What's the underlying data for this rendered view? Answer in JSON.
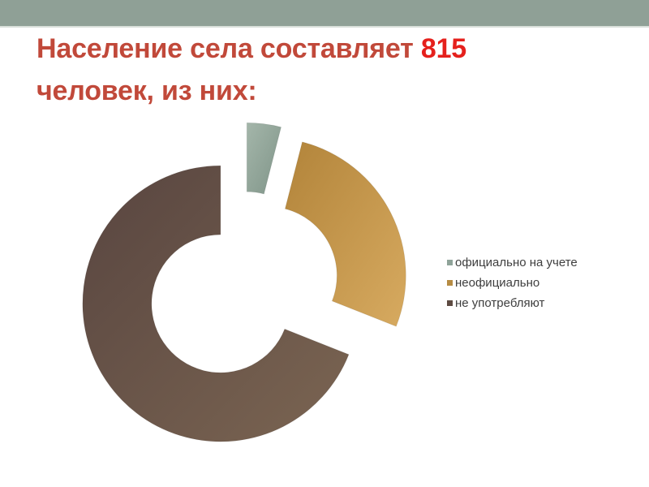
{
  "slide": {
    "top_bar_color": "#8FA096",
    "background_color": "#FFFFFF"
  },
  "title": {
    "text_before": "Население села составляет ",
    "highlight": "815",
    "text_after": " человек, из них:",
    "text_color": "#C1493A",
    "highlight_color": "#E5201C"
  },
  "chart_data": {
    "type": "pie",
    "subtype": "exploded-donut",
    "title": "Население села составляет 815 человек, из них:",
    "categories": [
      "официально на учете",
      "неофициально",
      "не употребляют"
    ],
    "values": [
      4,
      27,
      69
    ],
    "unit": "%",
    "start_angle_deg": 0,
    "direction": "clockwise",
    "legend_position": "right",
    "slice_colors": [
      {
        "from": "#A4B6AA",
        "to": "#7F9488",
        "legend": "#8FA399"
      },
      {
        "from": "#B2843A",
        "to": "#D7AA60",
        "legend": "#B68C44"
      },
      {
        "from": "#584540",
        "to": "#7B6552",
        "legend": "#5E4B42"
      }
    ]
  }
}
